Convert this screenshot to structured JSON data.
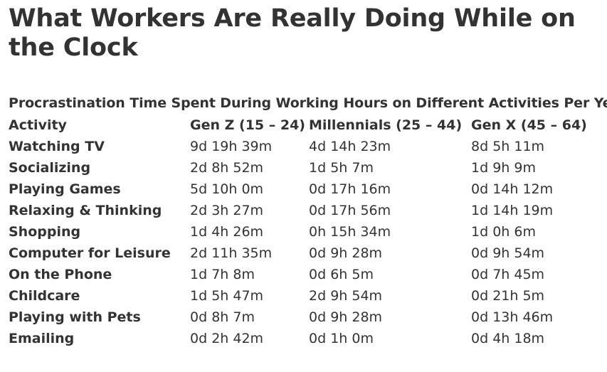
{
  "page": {
    "title": "What Workers Are Really Doing While on the Clock"
  },
  "table": {
    "caption": "Procrastination Time Spent During Working Hours on Different Activities Per Year",
    "headers": [
      "Activity",
      "Gen Z (15 – 24)",
      "Millennials (25 – 44)",
      "Gen X (45 – 64)"
    ],
    "rows": [
      [
        "Watching TV",
        "9d 19h 39m",
        "4d 14h 23m",
        "8d 5h 11m"
      ],
      [
        "Socializing",
        "2d 8h 52m",
        "1d 5h 7m",
        "1d 9h 9m"
      ],
      [
        "Playing Games",
        "5d 10h 0m",
        "0d 17h 16m",
        "0d 14h 12m"
      ],
      [
        "Relaxing & Thinking",
        "2d 3h 27m",
        "0d 17h 56m",
        "1d 14h 19m"
      ],
      [
        "Shopping",
        "1d 4h 26m",
        "0h 15h 34m",
        "1d 0h 6m"
      ],
      [
        "Computer for Leisure",
        "2d 11h 35m",
        "0d 9h 28m",
        "0d 9h 54m"
      ],
      [
        "On the Phone",
        "1d 7h 8m",
        "0d 6h 5m",
        "0d 7h 45m"
      ],
      [
        "Childcare",
        "1d 5h 47m",
        "2d 9h 54m",
        "0d 21h 5m"
      ],
      [
        "Playing with Pets",
        "0d 8h 7m",
        "0d 9h 28m",
        "0d 13h 46m"
      ],
      [
        "Emailing",
        "0d 2h 42m",
        "0d 1h 0m",
        "0d 4h 18m"
      ]
    ]
  }
}
